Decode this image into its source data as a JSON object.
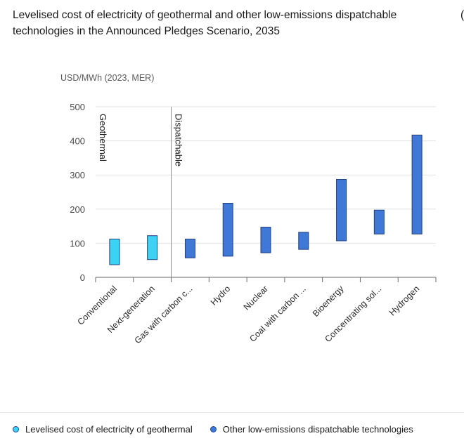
{
  "header": {
    "title": "Levelised cost of electricity of geothermal and other low-emissions dispatchable technologies in the Announced Pledges Scenario, 2035",
    "cut_text": "("
  },
  "chart_data": {
    "type": "bar",
    "subtype": "floating-range",
    "ylabel": "USD/MWh (2023, MER)",
    "ylim": [
      0,
      500
    ],
    "yticks": [
      0,
      100,
      200,
      300,
      400,
      500
    ],
    "grid": true,
    "legend_position": "bottom-left",
    "categories": [
      "Conventional",
      "Next-generation",
      "Gas with carbon c...",
      "Hydro",
      "Nuclear",
      "Coal with carbon ...",
      "Bioenergy",
      "Concentrating sol...",
      "Hydrogen"
    ],
    "group_dividers": [
      {
        "label": "Geothermal",
        "before_index": 0
      },
      {
        "label": "Dispatchable",
        "before_index": 2
      }
    ],
    "series": [
      {
        "name": "Levelised cost of electricity of geothermal",
        "color": "#3ad3f4",
        "ranges": [
          [
            37,
            112
          ],
          [
            52,
            122
          ],
          null,
          null,
          null,
          null,
          null,
          null,
          null
        ]
      },
      {
        "name": "Other low-emissions dispatchable technologies",
        "color": "#3f78d6",
        "ranges": [
          null,
          null,
          [
            57,
            112
          ],
          [
            62,
            217
          ],
          [
            72,
            147
          ],
          [
            82,
            132
          ],
          [
            107,
            287
          ],
          [
            127,
            197
          ],
          [
            127,
            417
          ]
        ]
      }
    ]
  }
}
